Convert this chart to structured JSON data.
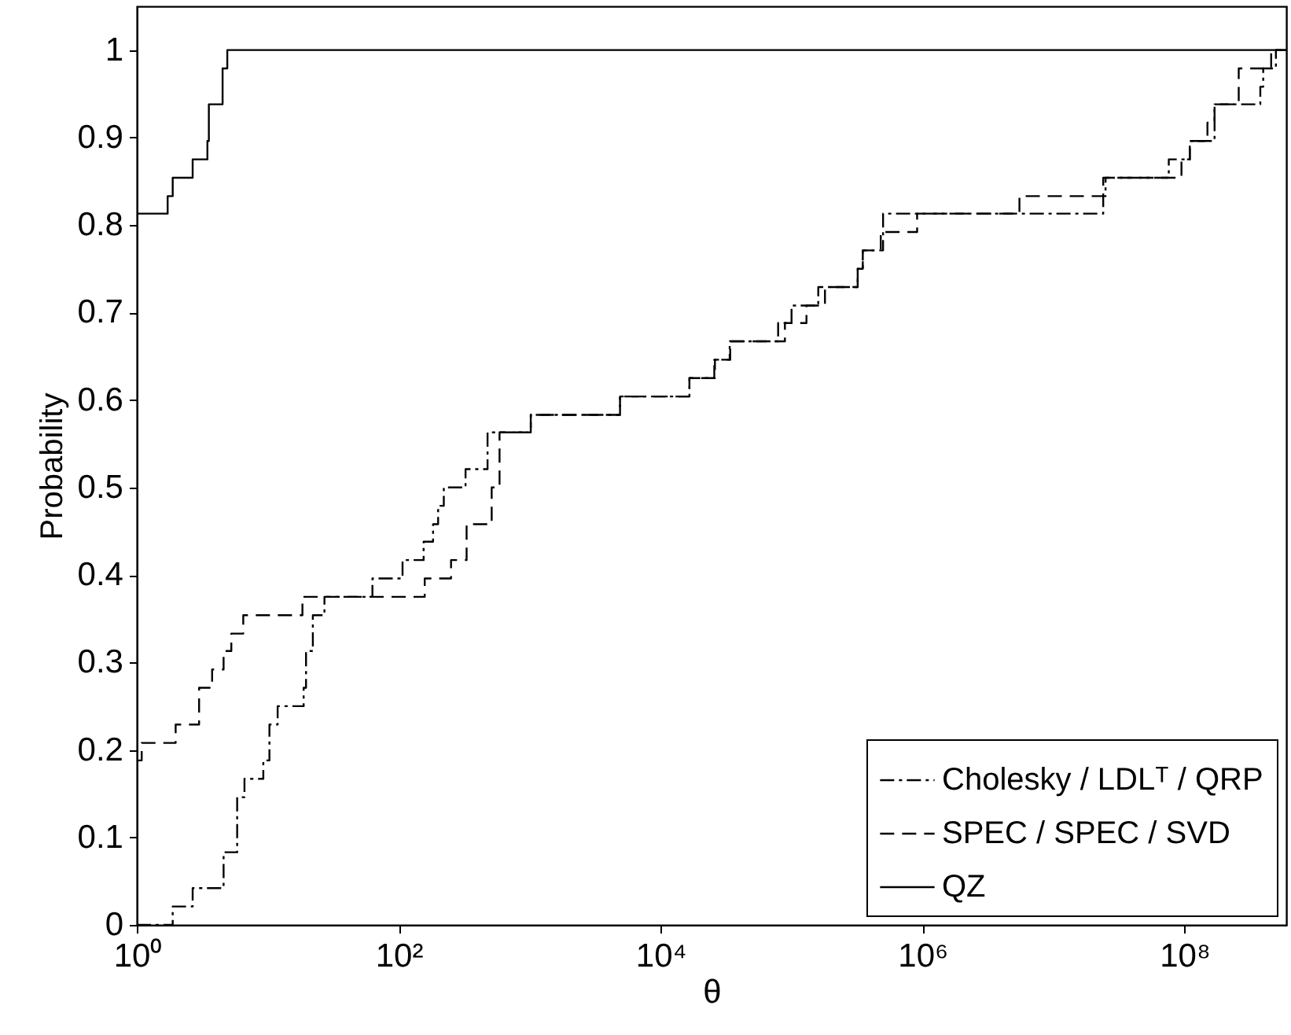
{
  "chart_data": {
    "type": "step",
    "xlabel": "θ",
    "ylabel": "Probability",
    "log": "x",
    "legend": "bottom right",
    "grid": false,
    "xlim": [
      1,
      600000000
    ],
    "ylim": [
      0,
      1.05
    ],
    "xticks": [
      {
        "value": 1,
        "label": "10⁰"
      },
      {
        "value": 100,
        "label": "10²"
      },
      {
        "value": 10000,
        "label": "10⁴"
      },
      {
        "value": 1000000,
        "label": "10⁶"
      },
      {
        "value": 100000000,
        "label": "10⁸"
      }
    ],
    "yticks": [
      0,
      0.1,
      0.2,
      0.3,
      0.4,
      0.5,
      0.6,
      0.7,
      0.8,
      0.9,
      1
    ],
    "series": [
      {
        "name": "Cholesky / LDLᵀ / QRP",
        "color": "#000000",
        "line_style": "dashdot",
        "x": [
          1,
          1.88,
          2.67,
          4.6,
          5.84,
          6.64,
          9.25,
          10.3,
          11.9,
          18.8,
          19.6,
          22.1,
          27.1,
          63,
          107,
          155,
          183,
          200,
          221,
          324,
          477,
          1020,
          4900,
          16600,
          25700,
          33700,
          79000,
          100000,
          160000,
          320000,
          350000,
          500000,
          24000000,
          25000000,
          76000000,
          110000000,
          170000000,
          380000000,
          400000000,
          500000000,
          600000000
        ],
        "values": [
          0,
          0.021,
          0.042,
          0.083,
          0.146,
          0.167,
          0.188,
          0.229,
          0.25,
          0.271,
          0.313,
          0.354,
          0.375,
          0.396,
          0.417,
          0.438,
          0.458,
          0.479,
          0.5,
          0.521,
          0.563,
          0.583,
          0.604,
          0.625,
          0.646,
          0.667,
          0.688,
          0.708,
          0.729,
          0.75,
          0.771,
          0.813,
          0.833,
          0.854,
          0.875,
          0.896,
          0.938,
          0.958,
          0.979,
          1,
          1
        ]
      },
      {
        "name": "SPEC / SPEC / SVD",
        "color": "#000000",
        "line_style": "dashed",
        "x": [
          1,
          1.09,
          1.98,
          2.99,
          3.76,
          4.6,
          5.27,
          6.5,
          18.4,
          158,
          251,
          330,
          513,
          589,
          1020,
          4900,
          16600,
          26000,
          34000,
          89000,
          130000,
          180000,
          320000,
          350000,
          480000,
          910000,
          5500000,
          24000000,
          95000000,
          110000000,
          150000000,
          170000000,
          260000000,
          460000000,
          600000000
        ],
        "values": [
          0.188,
          0.208,
          0.229,
          0.271,
          0.292,
          0.313,
          0.333,
          0.354,
          0.375,
          0.396,
          0.417,
          0.458,
          0.5,
          0.563,
          0.583,
          0.604,
          0.625,
          0.646,
          0.667,
          0.688,
          0.708,
          0.729,
          0.75,
          0.771,
          0.792,
          0.813,
          0.833,
          0.854,
          0.875,
          0.896,
          0.917,
          0.938,
          0.979,
          1,
          1
        ]
      },
      {
        "name": "QZ",
        "color": "#000000",
        "line_style": "solid",
        "x": [
          1,
          1.72,
          1.88,
          2.67,
          3.46,
          3.55,
          4.52,
          4.91,
          600000000
        ],
        "values": [
          0.813,
          0.833,
          0.854,
          0.875,
          0.896,
          0.938,
          0.979,
          1,
          1
        ]
      }
    ]
  }
}
